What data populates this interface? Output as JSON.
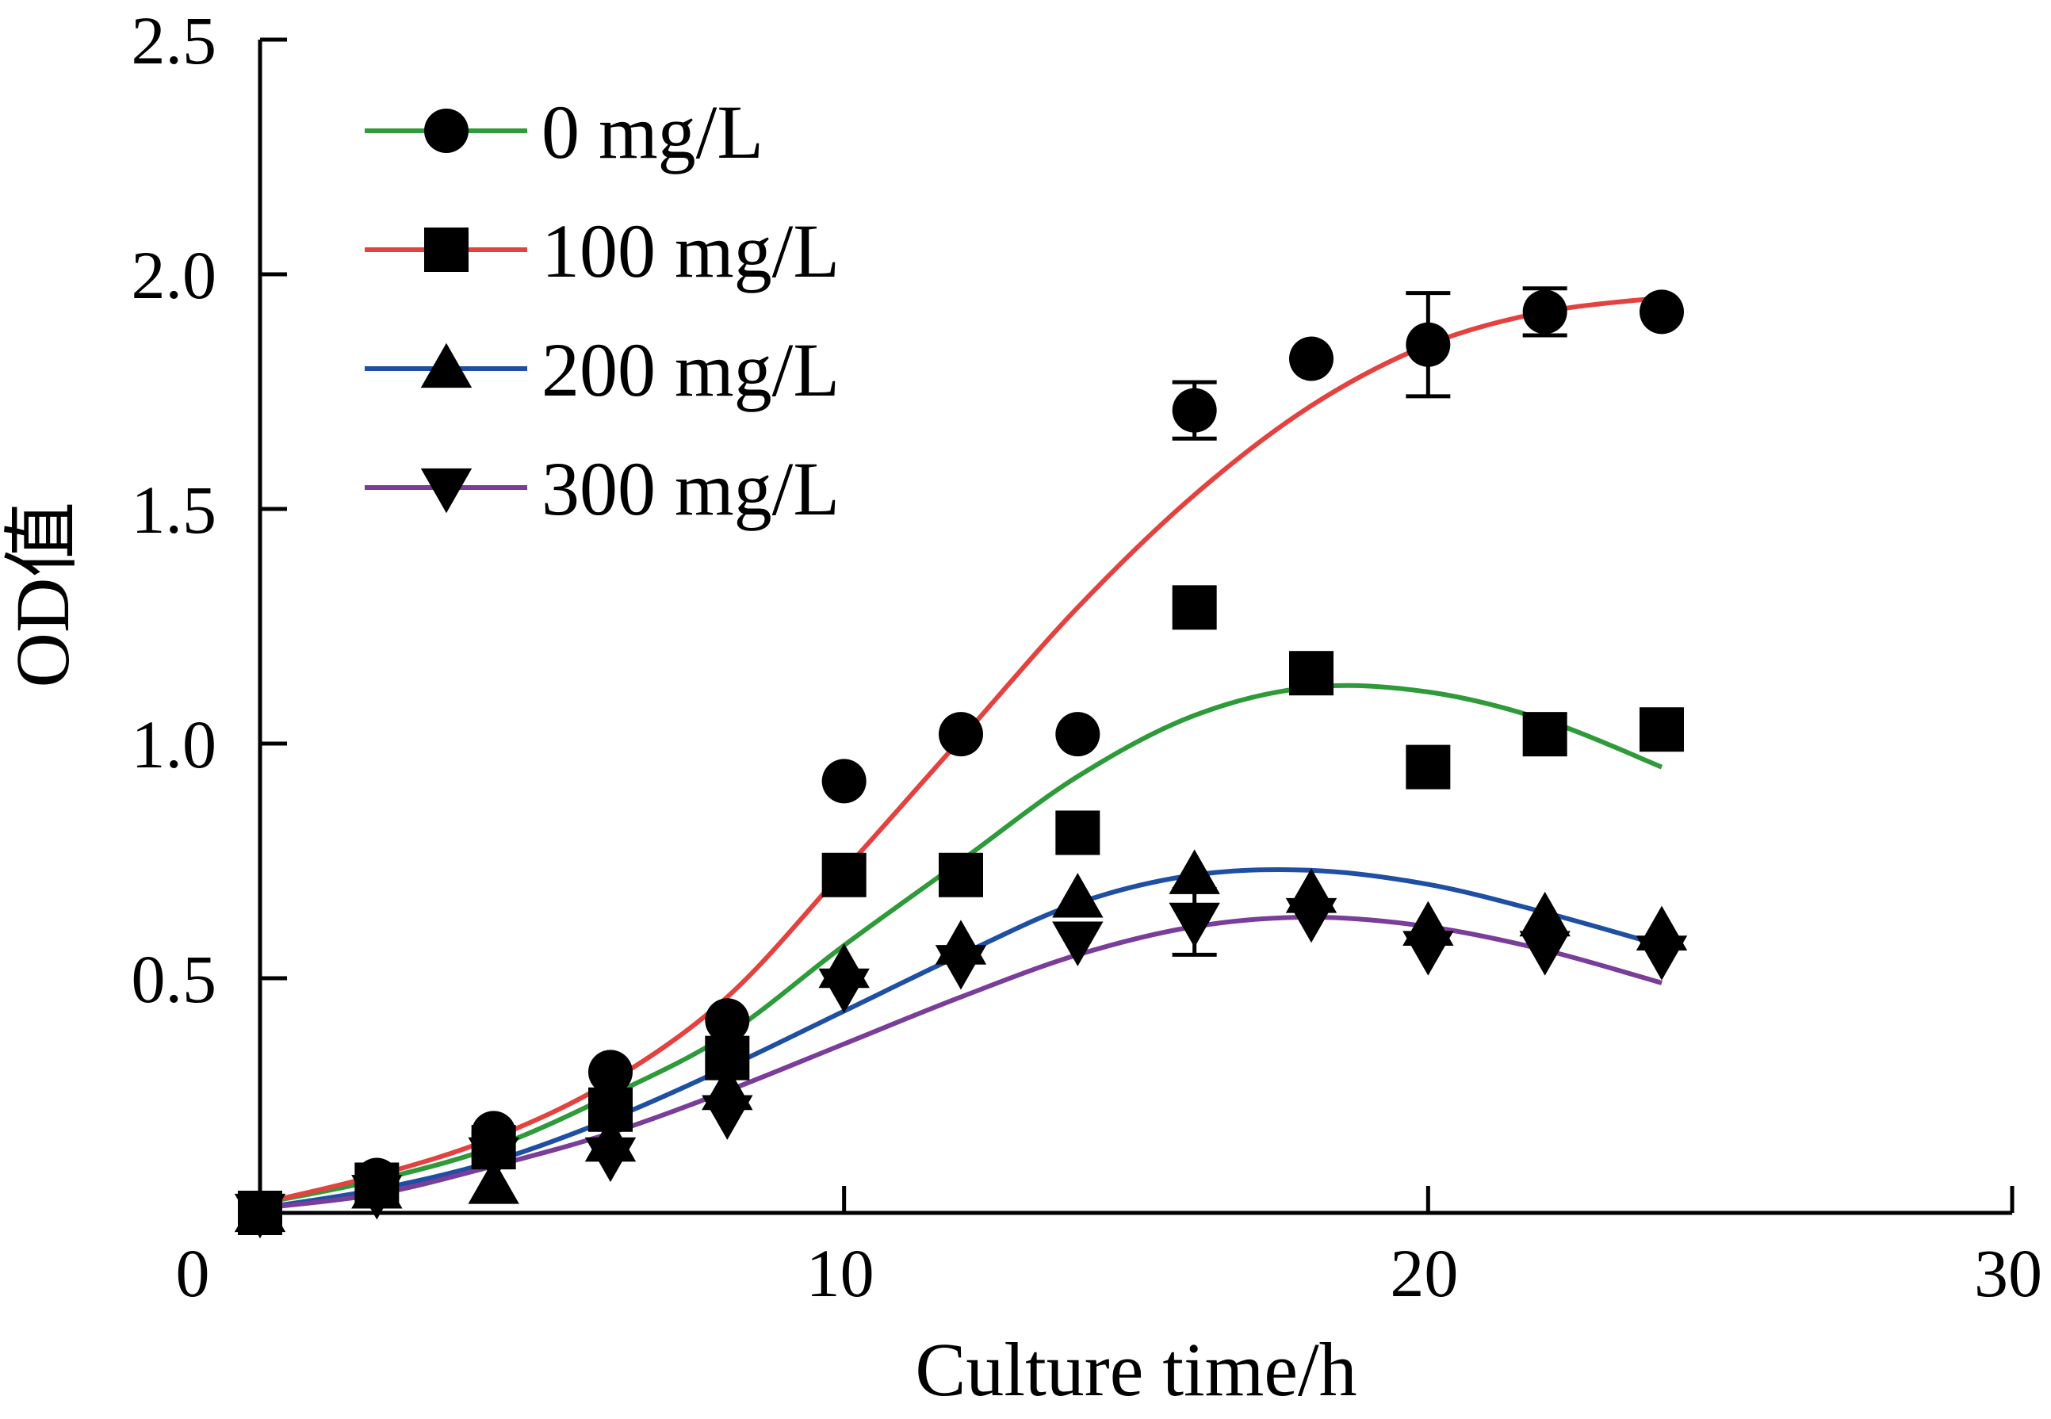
{
  "chart_data": {
    "type": "scatter",
    "xlabel": "Culture time/h",
    "ylabel": "OD值",
    "xlim": [
      0,
      30
    ],
    "ylim": [
      0,
      2.5
    ],
    "x_ticks": [
      "0",
      "10",
      "20",
      "30"
    ],
    "y_ticks": [
      "0.5",
      "1.0",
      "1.5",
      "2.0",
      "2.5"
    ],
    "grid": false,
    "legend_position": "top-left",
    "series": [
      {
        "name": "0 mg/L",
        "marker": "circle",
        "line_color": "#2e9a3a",
        "points": [
          [
            0,
            0
          ],
          [
            2,
            0.07
          ],
          [
            4,
            0.17
          ],
          [
            6,
            0.3
          ],
          [
            8,
            0.41
          ],
          [
            10,
            0.92
          ],
          [
            12,
            1.02
          ],
          [
            14,
            1.02
          ],
          [
            16,
            1.71
          ],
          [
            18,
            1.82
          ],
          [
            20,
            1.85
          ],
          [
            22,
            1.92
          ],
          [
            24,
            1.92
          ]
        ],
        "error": [
          0,
          0,
          0,
          0,
          0,
          0,
          0,
          0,
          0.06,
          0,
          0.11,
          0.05,
          0
        ],
        "fit": [
          [
            0,
            0.02
          ],
          [
            2,
            0.07
          ],
          [
            4,
            0.14
          ],
          [
            6,
            0.25
          ],
          [
            8,
            0.38
          ],
          [
            10,
            0.57
          ],
          [
            12,
            0.75
          ],
          [
            14,
            0.93
          ],
          [
            16,
            1.06
          ],
          [
            18,
            1.12
          ],
          [
            20,
            1.11
          ],
          [
            22,
            1.05
          ],
          [
            24,
            0.95
          ]
        ]
      },
      {
        "name": "100 mg/L",
        "marker": "square",
        "line_color": "#e3423f",
        "points": [
          [
            0,
            0
          ],
          [
            2,
            0.06
          ],
          [
            4,
            0.14
          ],
          [
            6,
            0.22
          ],
          [
            8,
            0.33
          ],
          [
            10,
            0.72
          ],
          [
            12,
            0.72
          ],
          [
            14,
            0.81
          ],
          [
            16,
            1.29
          ],
          [
            18,
            1.15
          ],
          [
            20,
            0.95
          ],
          [
            22,
            1.02
          ],
          [
            24,
            1.03
          ]
        ],
        "error": [
          0,
          0,
          0,
          0,
          0,
          0,
          0,
          0,
          0,
          0,
          0,
          0,
          0
        ],
        "fit": [
          [
            0,
            0.02
          ],
          [
            2,
            0.08
          ],
          [
            4,
            0.16
          ],
          [
            6,
            0.28
          ],
          [
            8,
            0.46
          ],
          [
            10,
            0.73
          ],
          [
            12,
            1.01
          ],
          [
            14,
            1.29
          ],
          [
            16,
            1.53
          ],
          [
            18,
            1.72
          ],
          [
            20,
            1.85
          ],
          [
            22,
            1.92
          ],
          [
            24,
            1.95
          ]
        ]
      },
      {
        "name": "200 mg/L",
        "marker": "triangle-up",
        "line_color": "#1f4fa3",
        "points": [
          [
            0,
            0
          ],
          [
            2,
            0.05
          ],
          [
            4,
            0.06
          ],
          [
            6,
            0.15
          ],
          [
            8,
            0.26
          ],
          [
            10,
            0.52
          ],
          [
            12,
            0.57
          ],
          [
            14,
            0.67
          ],
          [
            16,
            0.72
          ],
          [
            18,
            0.68
          ],
          [
            20,
            0.61
          ],
          [
            22,
            0.63
          ],
          [
            24,
            0.6
          ]
        ],
        "error": [
          0,
          0,
          0,
          0,
          0,
          0,
          0,
          0,
          0,
          0,
          0,
          0,
          0
        ],
        "fit": [
          [
            0,
            0.01
          ],
          [
            2,
            0.05
          ],
          [
            4,
            0.11
          ],
          [
            6,
            0.2
          ],
          [
            8,
            0.31
          ],
          [
            10,
            0.43
          ],
          [
            12,
            0.55
          ],
          [
            14,
            0.66
          ],
          [
            16,
            0.72
          ],
          [
            18,
            0.73
          ],
          [
            20,
            0.7
          ],
          [
            22,
            0.64
          ],
          [
            24,
            0.57
          ]
        ]
      },
      {
        "name": "300 mg/L",
        "marker": "triangle-down",
        "line_color": "#7a3d9a",
        "points": [
          [
            0,
            0
          ],
          [
            2,
            0.04
          ],
          [
            4,
            0.12
          ],
          [
            6,
            0.12
          ],
          [
            8,
            0.21
          ],
          [
            10,
            0.48
          ],
          [
            12,
            0.53
          ],
          [
            14,
            0.58
          ],
          [
            16,
            0.62
          ],
          [
            18,
            0.63
          ],
          [
            20,
            0.56
          ],
          [
            22,
            0.56
          ],
          [
            24,
            0.55
          ]
        ],
        "error": [
          0,
          0,
          0,
          0,
          0,
          0,
          0,
          0,
          0.07,
          0,
          0,
          0,
          0
        ],
        "fit": [
          [
            0,
            0.01
          ],
          [
            2,
            0.04
          ],
          [
            4,
            0.1
          ],
          [
            6,
            0.17
          ],
          [
            8,
            0.26
          ],
          [
            10,
            0.36
          ],
          [
            12,
            0.46
          ],
          [
            14,
            0.55
          ],
          [
            16,
            0.61
          ],
          [
            18,
            0.63
          ],
          [
            20,
            0.61
          ],
          [
            22,
            0.56
          ],
          [
            24,
            0.49
          ]
        ]
      }
    ]
  }
}
